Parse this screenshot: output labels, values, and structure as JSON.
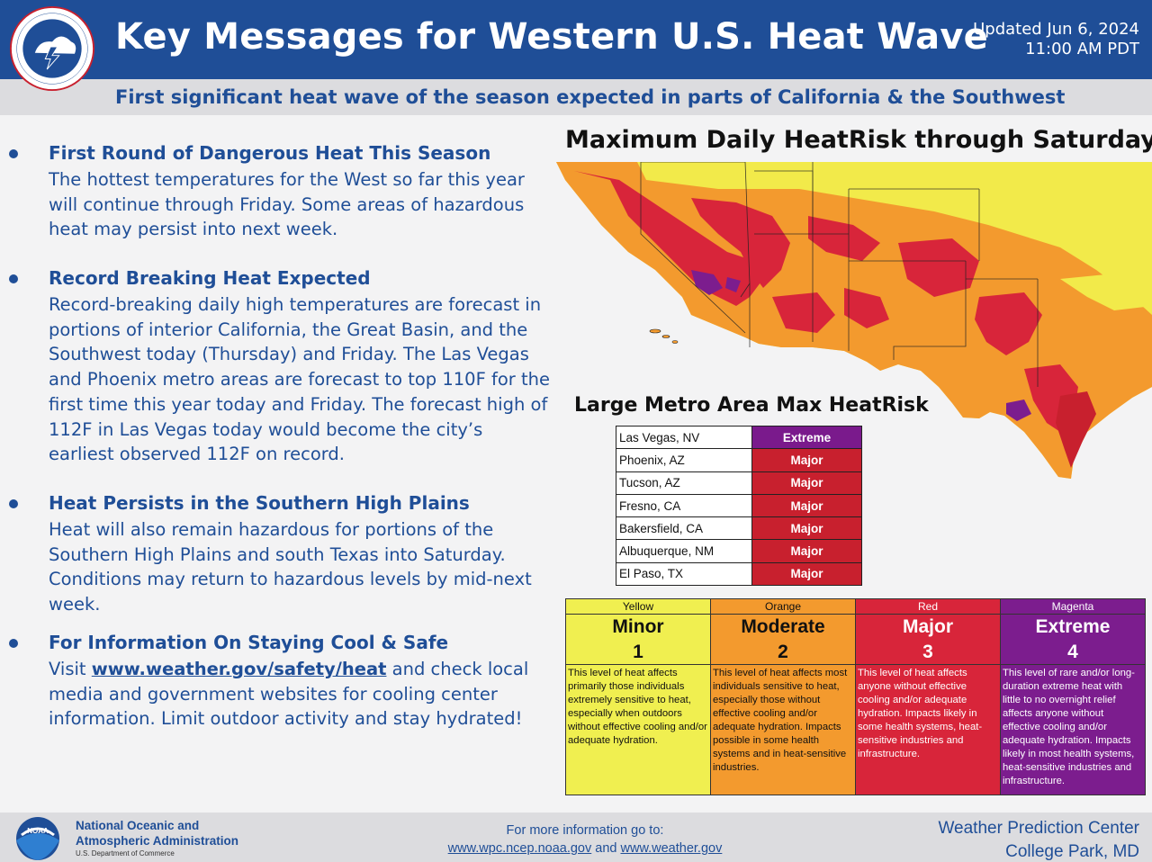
{
  "header": {
    "logo_text": "NATIONAL WEATHER SERVICE",
    "title": "Key Messages for Western U.S. Heat Wave",
    "updated_line1": "Updated Jun 6, 2024",
    "updated_line2": "11:00 AM PDT",
    "subtitle": "First significant heat wave of the season expected in parts of California & the Southwest"
  },
  "bullets": [
    {
      "heading": "First Round of Dangerous Heat This Season",
      "body": "The hottest temperatures for the West so far this year will continue through Friday. Some areas of hazardous heat may persist into next week."
    },
    {
      "heading": "Record Breaking Heat Expected",
      "body": "Record-breaking daily high temperatures are forecast in portions of interior California, the Great Basin, and the Southwest today (Thursday) and Friday. The Las Vegas and Phoenix metro areas are forecast to top 110F for the first time this year today and Friday. The forecast high of 112F in Las Vegas today would become the city’s earliest observed 112F on record."
    },
    {
      "heading": "Heat Persists in the Southern High Plains",
      "body": "Heat will also remain hazardous for portions of the Southern High Plains and south Texas into Saturday. Conditions may return to hazardous levels by mid-next week."
    },
    {
      "heading": "For Information On Staying Cool & Safe",
      "body_prefix": "Visit ",
      "link": "www.weather.gov/safety/heat",
      "body_suffix": " and check local media and government websites for cooling center information. Limit outdoor activity and stay hydrated!"
    }
  ],
  "map": {
    "title": "Maximum Daily HeatRisk through Saturday"
  },
  "metro": {
    "title": "Large Metro Area Max HeatRisk",
    "rows": [
      {
        "city": "Las Vegas, NV",
        "risk": "Extreme",
        "color": "#7a1a8c"
      },
      {
        "city": "Phoenix, AZ",
        "risk": "Major",
        "color": "#c8202e"
      },
      {
        "city": "Tucson, AZ",
        "risk": "Major",
        "color": "#c8202e"
      },
      {
        "city": "Fresno, CA",
        "risk": "Major",
        "color": "#c8202e"
      },
      {
        "city": "Bakersfield, CA",
        "risk": "Major",
        "color": "#c8202e"
      },
      {
        "city": "Albuquerque, NM",
        "risk": "Major",
        "color": "#c8202e"
      },
      {
        "city": "El Paso, TX",
        "risk": "Major",
        "color": "#c8202e"
      }
    ]
  },
  "legend": [
    {
      "color_name": "Yellow",
      "name": "Minor",
      "level": "1",
      "bg": "#f0ef50",
      "fg": "#111111",
      "desc": "This level of heat affects primarily those individuals extremely sensitive to heat, especially when outdoors without effective cooling and/or adequate hydration."
    },
    {
      "color_name": "Orange",
      "name": "Moderate",
      "level": "2",
      "bg": "#f39a2e",
      "fg": "#111111",
      "desc": "This level of heat affects most individuals sensitive to heat, especially those without effective cooling and/or adequate hydration. Impacts possible in some health systems and in heat-sensitive industries."
    },
    {
      "color_name": "Red",
      "name": "Major",
      "level": "3",
      "bg": "#d8253a",
      "fg": "#ffffff",
      "desc": "This level of heat affects anyone without effective cooling and/or adequate hydration. Impacts likely in some health systems, heat-sensitive industries and infrastructure."
    },
    {
      "color_name": "Magenta",
      "name": "Extreme",
      "level": "4",
      "bg": "#7c1d8e",
      "fg": "#ffffff",
      "desc": "This level of rare and/or long-duration extreme heat with little to no overnight relief affects anyone without effective cooling and/or adequate hydration. Impacts likely in most health systems, heat-sensitive industries and infrastructure."
    }
  ],
  "footer": {
    "noaa_line1": "National Oceanic and",
    "noaa_line2": "Atmospheric Administration",
    "noaa_dept": "U.S. Department of Commerce",
    "more_info": "For more information go to:",
    "link1": "www.wpc.ncep.noaa.gov",
    "and": " and ",
    "link2": "www.weather.gov",
    "wpc_line1": "Weather Prediction Center",
    "wpc_line2": "College Park, MD"
  },
  "colors": {
    "brand_blue": "#1f4e97",
    "minor": "#f0ef50",
    "moderate": "#f39a2e",
    "major": "#d8253a",
    "extreme": "#7c1d8e"
  }
}
